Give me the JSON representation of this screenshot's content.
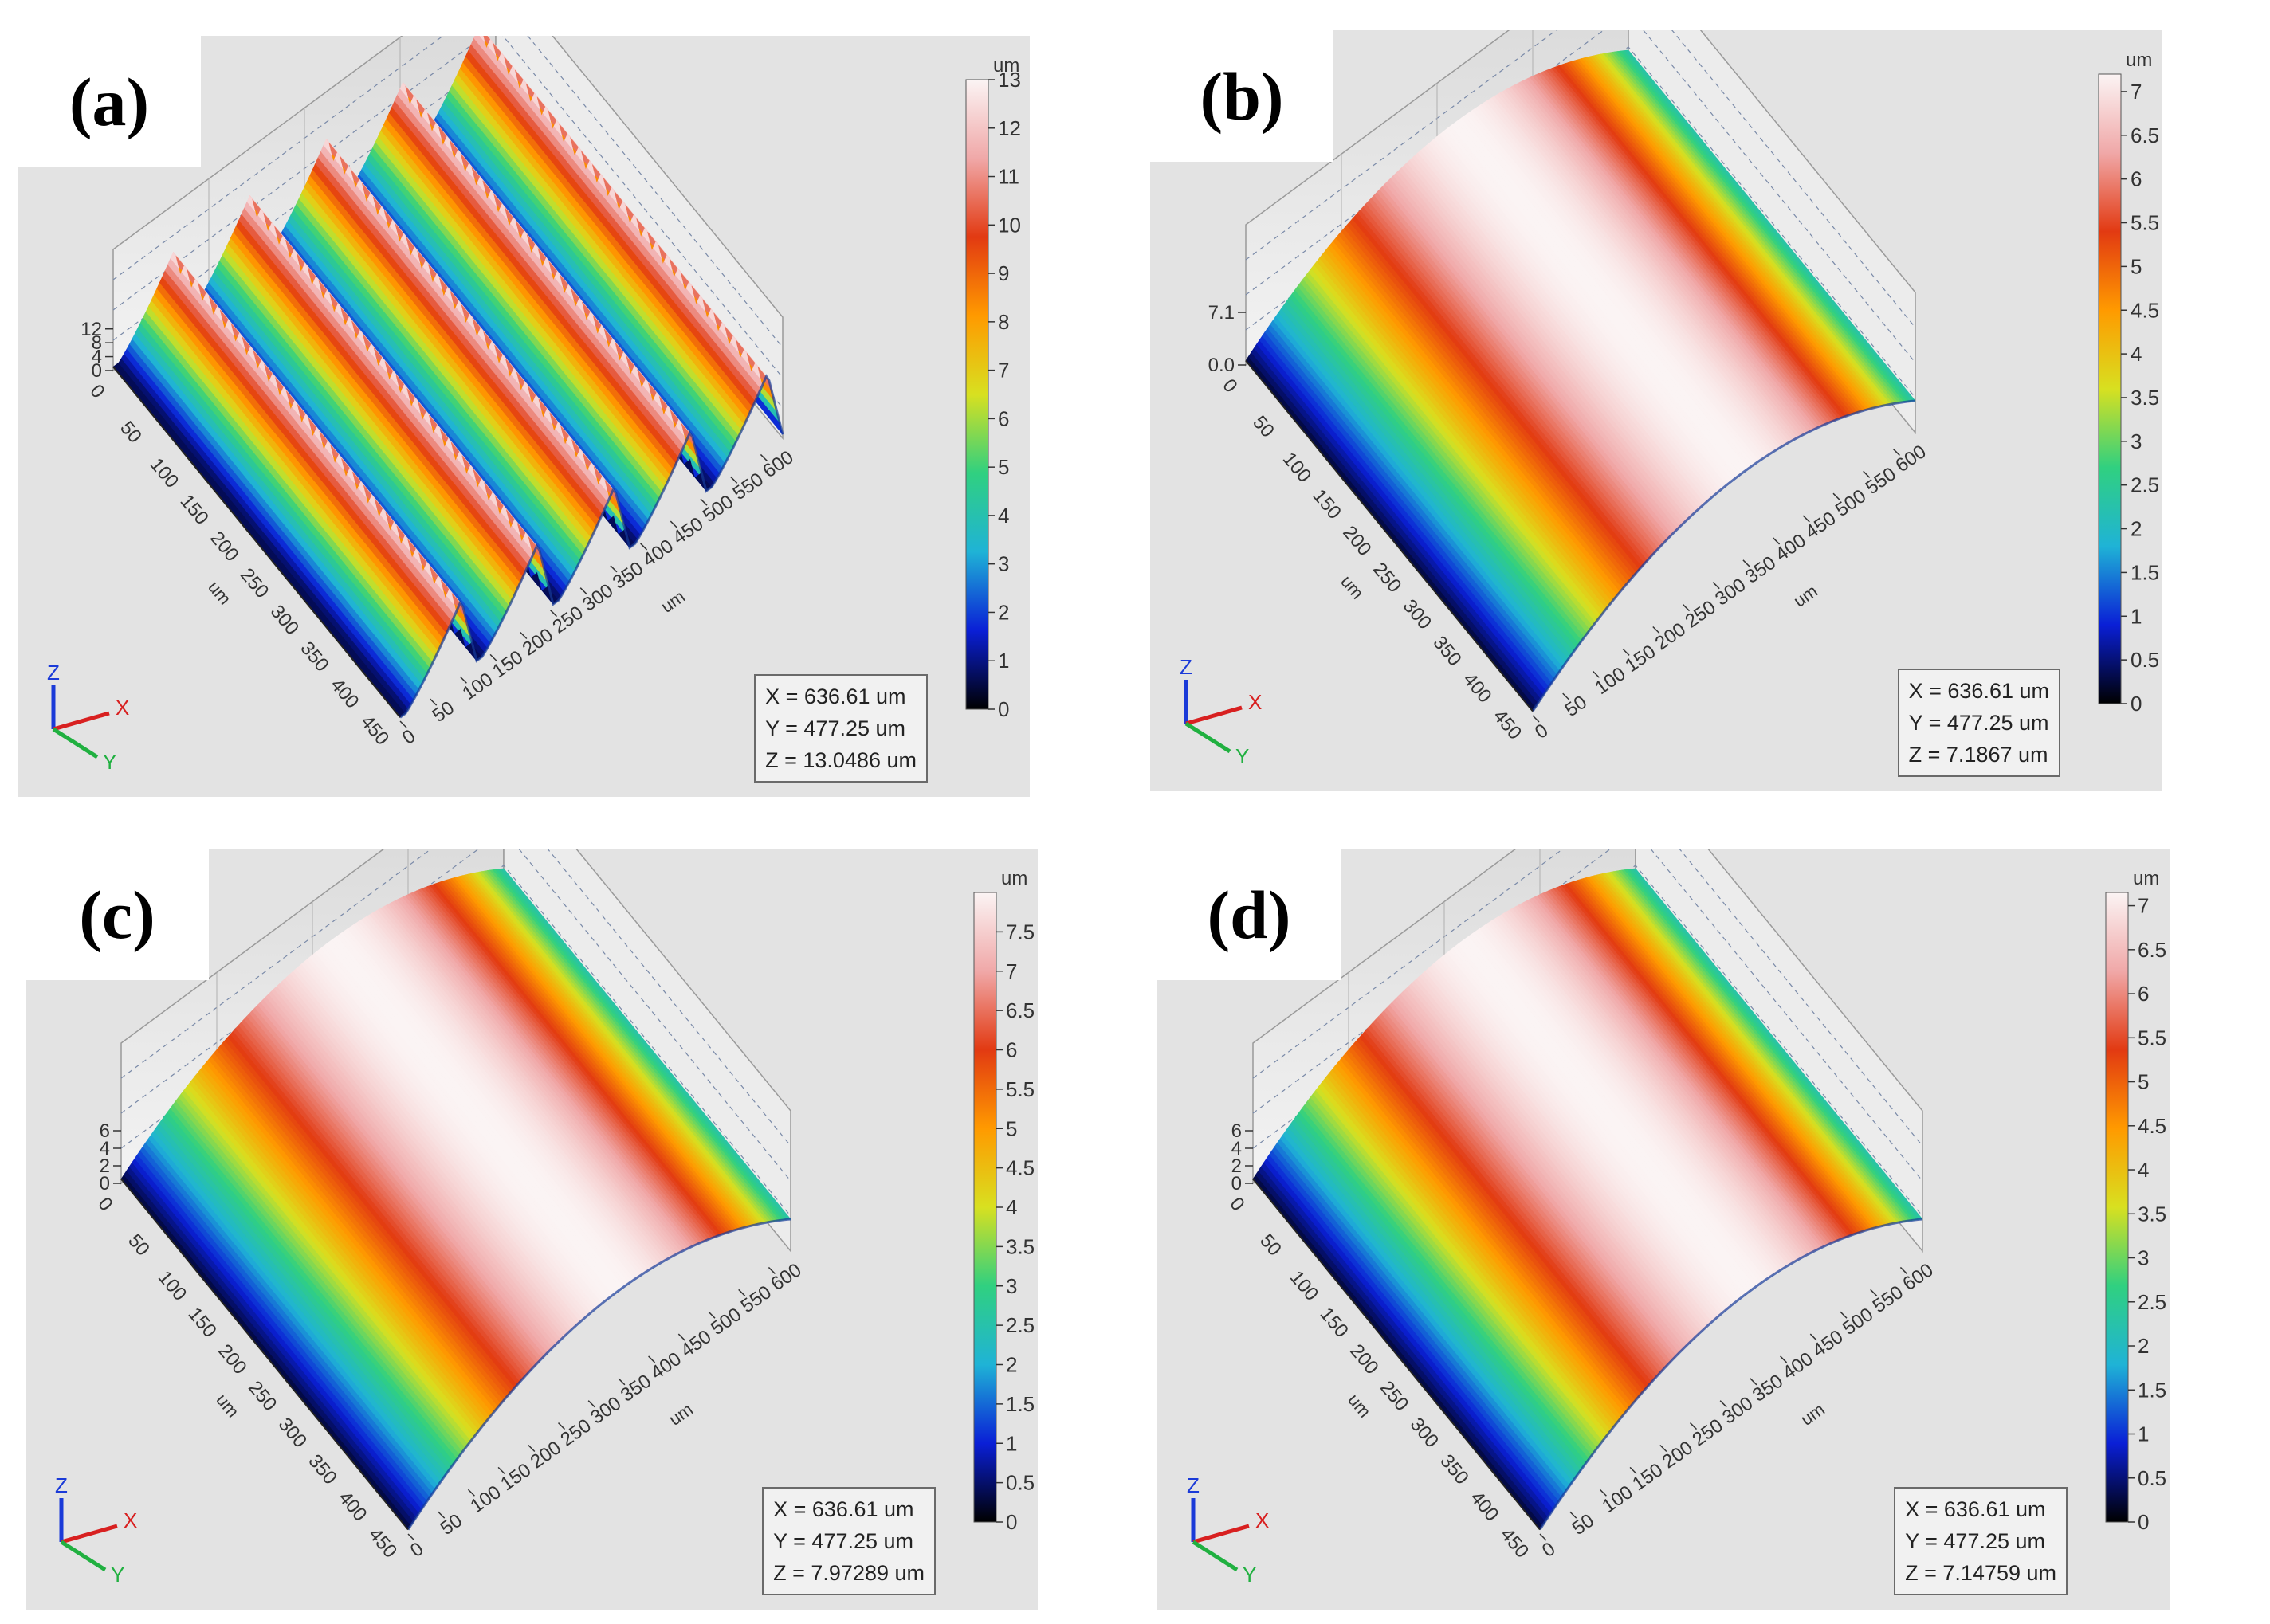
{
  "panels": [
    {
      "id": "a",
      "label": "(a)",
      "readout": {
        "x": "X = 636.61 um",
        "y": "Y = 477.25 um",
        "z": "Z = 13.0486 um"
      },
      "zmax_label": "12",
      "z_ticks": [
        "0",
        "4",
        "8",
        "12"
      ],
      "colorbar": {
        "unit": "um",
        "max": 13,
        "ticks": [
          "0",
          "1",
          "2",
          "3",
          "4",
          "5",
          "6",
          "7",
          "8",
          "9",
          "10",
          "11",
          "12",
          "13"
        ]
      }
    },
    {
      "id": "b",
      "label": "(b)",
      "readout": {
        "x": "X = 636.61 um",
        "y": "Y = 477.25 um",
        "z": "Z = 7.1867 um"
      },
      "zmax_label": "7.1",
      "z_ticks": [
        "0.0",
        "7.1"
      ],
      "colorbar": {
        "unit": "um",
        "max": 7.2,
        "ticks": [
          "0",
          "0.5",
          "1",
          "1.5",
          "2",
          "2.5",
          "3",
          "3.5",
          "4",
          "4.5",
          "5",
          "5.5",
          "6",
          "6.5",
          "7"
        ]
      }
    },
    {
      "id": "c",
      "label": "(c)",
      "readout": {
        "x": "X = 636.61 um",
        "y": "Y = 477.25 um",
        "z": "Z = 7.97289 um"
      },
      "zmax_label": "6",
      "z_ticks": [
        "0",
        "2",
        "4",
        "6"
      ],
      "colorbar": {
        "unit": "um",
        "max": 8.0,
        "ticks": [
          "0",
          "0.5",
          "1",
          "1.5",
          "2",
          "2.5",
          "3",
          "3.5",
          "4",
          "4.5",
          "5",
          "5.5",
          "6",
          "6.5",
          "7",
          "7.5"
        ]
      }
    },
    {
      "id": "d",
      "label": "(d)",
      "readout": {
        "x": "X = 636.61 um",
        "y": "Y = 477.25 um",
        "z": "Z = 7.14759 um"
      },
      "zmax_label": "6",
      "z_ticks": [
        "0",
        "2",
        "4",
        "6"
      ],
      "colorbar": {
        "unit": "um",
        "max": 7.15,
        "ticks": [
          "0",
          "0.5",
          "1",
          "1.5",
          "2",
          "2.5",
          "3",
          "3.5",
          "4",
          "4.5",
          "5",
          "5.5",
          "6",
          "6.5",
          "7"
        ]
      }
    }
  ],
  "axes": {
    "x_ticks": [
      "0",
      "50",
      "100",
      "150",
      "200",
      "250",
      "300",
      "350",
      "400",
      "450",
      "500",
      "550",
      "600"
    ],
    "y_ticks": [
      "0",
      "50",
      "100",
      "150",
      "200",
      "250",
      "300",
      "350",
      "400",
      "450"
    ],
    "x_unit": "um",
    "y_unit": "um",
    "triad": {
      "x": "X",
      "y": "Y",
      "z": "Z"
    }
  },
  "chart_data": [
    {
      "type": "heatmap",
      "title": "(a)",
      "xlabel": "um",
      "ylabel": "um",
      "zlabel": "um",
      "x_range": [
        0,
        636.61
      ],
      "y_range": [
        0,
        477.25
      ],
      "z_range": [
        0,
        13.0486
      ],
      "surface": "five parallel ridges along Y",
      "colorbar_range": [
        0,
        13
      ]
    },
    {
      "type": "heatmap",
      "title": "(b)",
      "xlabel": "um",
      "ylabel": "um",
      "zlabel": "um",
      "x_range": [
        0,
        636.61
      ],
      "y_range": [
        0,
        477.25
      ],
      "z_range": [
        0,
        7.1867
      ],
      "surface": "single cylindrical dome",
      "colorbar_range": [
        0,
        7.2
      ]
    },
    {
      "type": "heatmap",
      "title": "(c)",
      "xlabel": "um",
      "ylabel": "um",
      "zlabel": "um",
      "x_range": [
        0,
        636.61
      ],
      "y_range": [
        0,
        477.25
      ],
      "z_range": [
        0,
        7.97289
      ],
      "surface": "single cylindrical dome",
      "colorbar_range": [
        0,
        8.0
      ]
    },
    {
      "type": "heatmap",
      "title": "(d)",
      "xlabel": "um",
      "ylabel": "um",
      "zlabel": "um",
      "x_range": [
        0,
        636.61
      ],
      "y_range": [
        0,
        477.25
      ],
      "z_range": [
        0,
        7.14759
      ],
      "surface": "single cylindrical dome",
      "colorbar_range": [
        0,
        7.15
      ]
    }
  ],
  "colors": {
    "panel_bg": "#e3e3e3",
    "stops": [
      "#000000",
      "#0a1fd6",
      "#1fb3d6",
      "#30d080",
      "#d8e020",
      "#ff9a00",
      "#e23a12",
      "#f0a8a8",
      "#fbf4f4"
    ]
  }
}
